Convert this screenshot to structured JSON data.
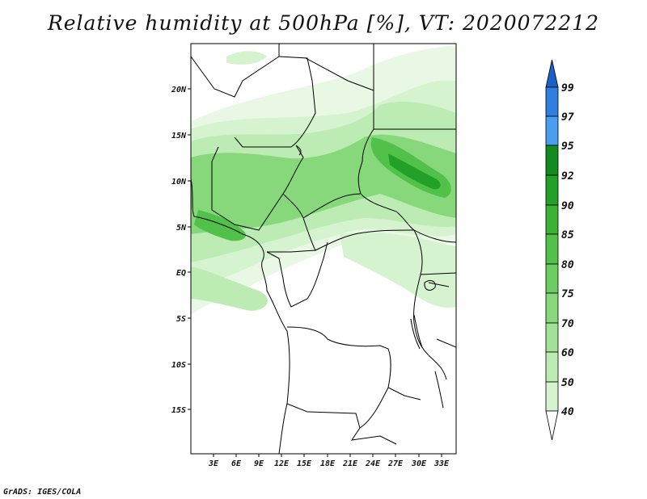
{
  "title": "Relative humidity at 500hPa [%], VT: 2020072212",
  "footer": "GrADS: IGES/COLA",
  "map": {
    "lat_labels": [
      "20N",
      "15N",
      "10N",
      "5N",
      "EQ",
      "5S",
      "10S",
      "15S"
    ],
    "lat_values": [
      20,
      15,
      10,
      5,
      0,
      -5,
      -10,
      -15
    ],
    "lon_labels": [
      "3E",
      "6E",
      "9E",
      "12E",
      "15E",
      "18E",
      "21E",
      "24E",
      "27E",
      "30E",
      "33E"
    ],
    "lon_values": [
      3,
      6,
      9,
      12,
      15,
      18,
      21,
      24,
      27,
      30,
      33
    ],
    "lon_range": [
      0,
      35
    ],
    "lat_range": [
      -20,
      25
    ]
  },
  "colorbar": {
    "labels": [
      "40",
      "50",
      "60",
      "70",
      "75",
      "80",
      "85",
      "90",
      "92",
      "95",
      "97",
      "99"
    ],
    "colors": [
      "#e8f8e4",
      "#d6f3cf",
      "#bdebb4",
      "#a2e297",
      "#86d87a",
      "#6ccd61",
      "#52c14a",
      "#3bb236",
      "#22a028",
      "#128c1e",
      "#4a9ef0",
      "#2f7fe0",
      "#1a60c8"
    ]
  },
  "humidity_field": {
    "bands": [
      {
        "label": "40-50",
        "color": "#e8f8e4"
      },
      {
        "label": "50-60",
        "color": "#d6f3cf"
      },
      {
        "label": "60-70",
        "color": "#bdebb4"
      },
      {
        "label": "70-80",
        "color": "#86d87a"
      },
      {
        "label": "80-90",
        "color": "#52c14a"
      },
      {
        "label": "90-95",
        "color": "#22a028"
      }
    ]
  }
}
